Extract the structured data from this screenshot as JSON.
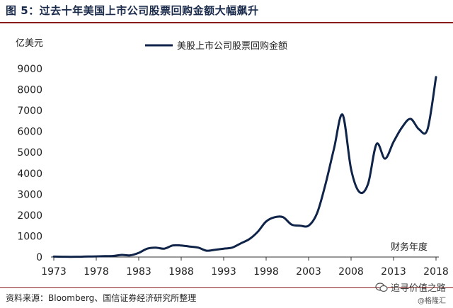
{
  "figure": {
    "title": "图 5：过去十年美国上市公司股票回购金额大幅飙升",
    "source": "资料来源：Bloomberg、国信证券经济研究所整理",
    "watermark": "追寻价值之路",
    "watermark_sub": "@格隆汇"
  },
  "colors": {
    "line": "#0f2448",
    "rule": "#8a1c1c",
    "axis": "#333333"
  },
  "icons": {
    "watermark": "wechat-icon"
  },
  "chart_data": {
    "type": "line",
    "ylabel": "亿美元",
    "xlabel": "财务年度",
    "ylim": [
      0,
      9000
    ],
    "yticks": [
      0,
      1000,
      2000,
      3000,
      4000,
      5000,
      6000,
      7000,
      8000,
      9000
    ],
    "xlim": [
      1973,
      2018
    ],
    "xticks": [
      1973,
      1978,
      1983,
      1988,
      1993,
      1998,
      2003,
      2008,
      2013,
      2018
    ],
    "legend": "top-center",
    "series": [
      {
        "name": "美股上市公司股票回购金额",
        "x": [
          1973,
          1974,
          1975,
          1976,
          1977,
          1978,
          1979,
          1980,
          1981,
          1982,
          1983,
          1984,
          1985,
          1986,
          1987,
          1988,
          1989,
          1990,
          1991,
          1992,
          1993,
          1994,
          1995,
          1996,
          1997,
          1998,
          1999,
          2000,
          2001,
          2002,
          2003,
          2004,
          2005,
          2006,
          2007,
          2008,
          2009,
          2010,
          2011,
          2012,
          2013,
          2014,
          2015,
          2016,
          2017,
          2018
        ],
        "values": [
          20,
          15,
          10,
          15,
          25,
          30,
          40,
          50,
          100,
          80,
          200,
          400,
          450,
          400,
          550,
          550,
          500,
          450,
          300,
          350,
          400,
          450,
          650,
          850,
          1200,
          1700,
          1900,
          1900,
          1550,
          1500,
          1500,
          2100,
          3500,
          5200,
          6800,
          4200,
          3100,
          3500,
          5400,
          4700,
          5500,
          6200,
          6600,
          6100,
          6100,
          8600
        ]
      }
    ]
  }
}
